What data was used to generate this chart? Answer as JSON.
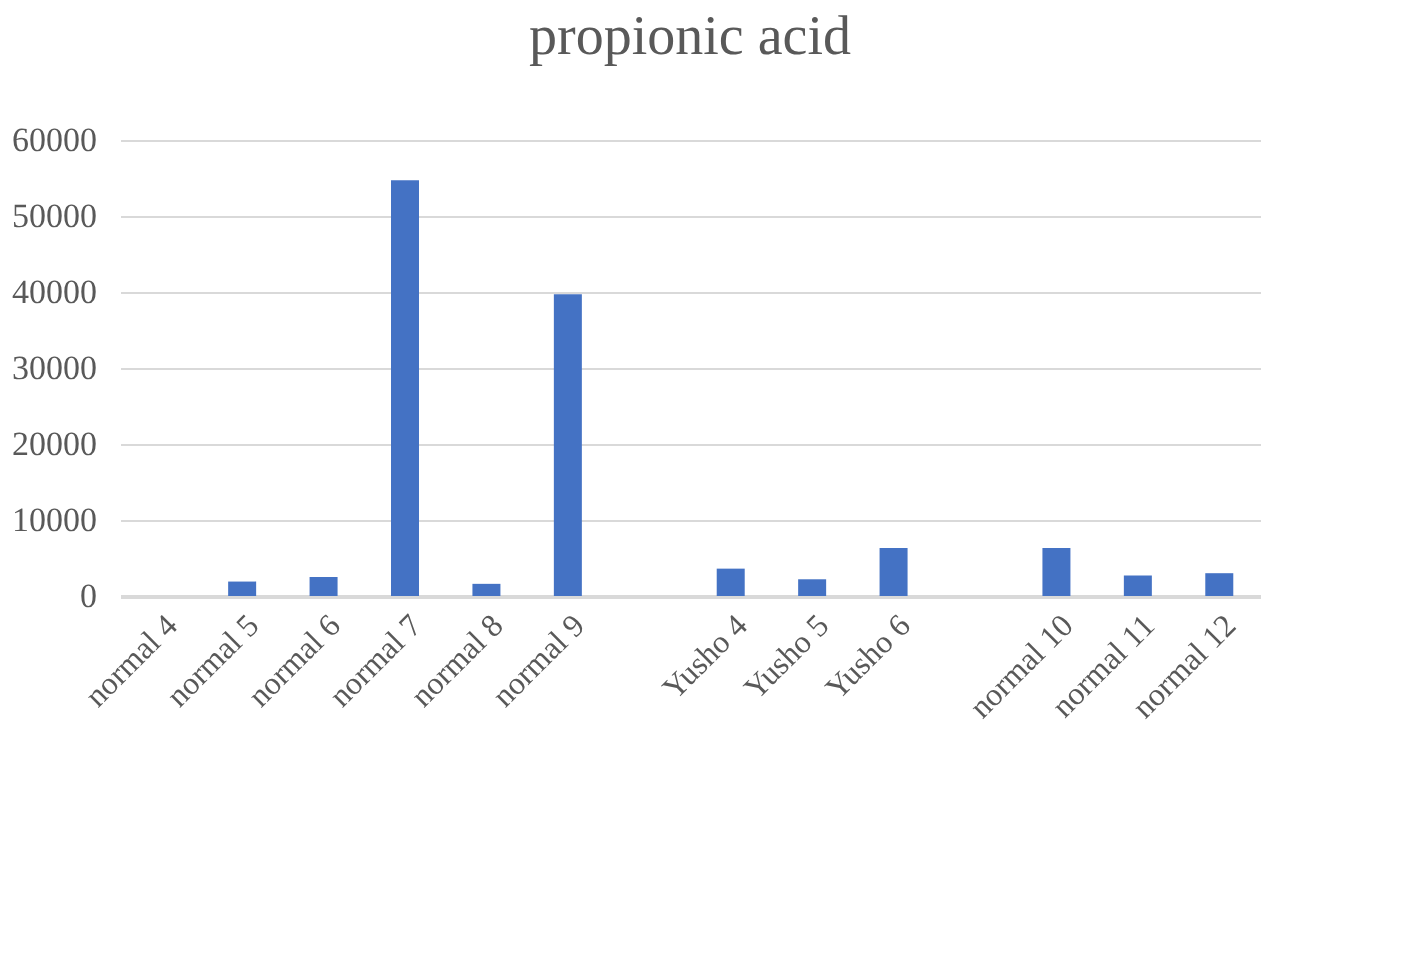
{
  "chart_data": {
    "type": "bar",
    "title": "propionic acid",
    "categories": [
      "normal 4",
      "normal 5",
      "normal 6",
      "normal 7",
      "normal 8",
      "normal 9",
      null,
      "Yusho 4",
      "Yusho 5",
      "Yusho 6",
      null,
      "normal 10",
      "normal 11",
      "normal 12"
    ],
    "values": [
      0,
      1900,
      2500,
      54700,
      1600,
      39700,
      null,
      3600,
      2200,
      6300,
      null,
      6300,
      2700,
      3000
    ],
    "color": "#4472c4",
    "ylim": [
      0,
      60000
    ],
    "yticks": [
      0,
      10000,
      20000,
      30000,
      40000,
      50000,
      60000
    ],
    "grid": "y"
  }
}
